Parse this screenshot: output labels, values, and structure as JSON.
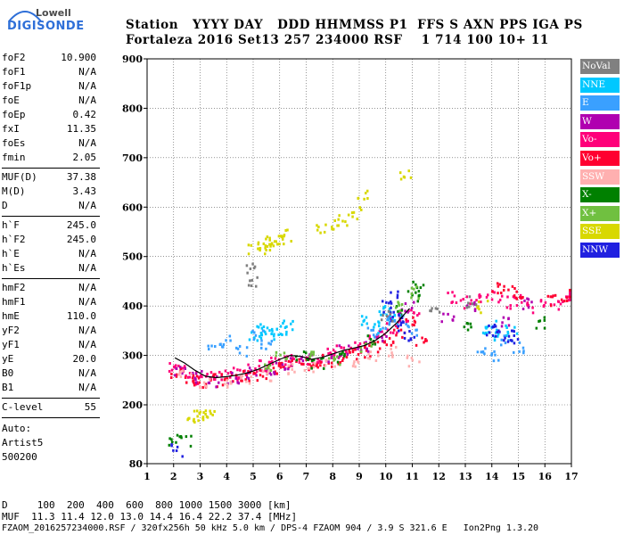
{
  "logo": {
    "line1": "Lowell",
    "line2": "DIGISONDE"
  },
  "header": {
    "labels": "Station   YYYY DAY   DDD HHMMSS P1  FFS S AXN PPS IGA PS",
    "values": "Fortaleza 2016 Set13 257 234000 RSF    1 714 100 10+ 11"
  },
  "params": {
    "group1": [
      {
        "name": "foF2",
        "value": "10.900"
      },
      {
        "name": "foF1",
        "value": "N/A"
      },
      {
        "name": "foF1p",
        "value": "N/A"
      },
      {
        "name": "foE",
        "value": "N/A"
      },
      {
        "name": "foEp",
        "value": "0.42"
      },
      {
        "name": "fxI",
        "value": "11.35"
      },
      {
        "name": "foEs",
        "value": "N/A"
      },
      {
        "name": "fmin",
        "value": "2.05"
      }
    ],
    "group2": [
      {
        "name": "MUF(D)",
        "value": "37.38"
      },
      {
        "name": "M(D)",
        "value": "3.43"
      },
      {
        "name": "D",
        "value": "N/A"
      }
    ],
    "group3": [
      {
        "name": "h`F",
        "value": "245.0"
      },
      {
        "name": "h`F2",
        "value": "245.0"
      },
      {
        "name": "h`E",
        "value": "N/A"
      },
      {
        "name": "h`Es",
        "value": "N/A"
      }
    ],
    "group4": [
      {
        "name": "hmF2",
        "value": "N/A"
      },
      {
        "name": "hmF1",
        "value": "N/A"
      },
      {
        "name": "hmE",
        "value": "110.0"
      },
      {
        "name": "yF2",
        "value": "N/A"
      },
      {
        "name": "yF1",
        "value": "N/A"
      },
      {
        "name": "yE",
        "value": "20.0"
      },
      {
        "name": "B0",
        "value": "N/A"
      },
      {
        "name": "B1",
        "value": "N/A"
      }
    ],
    "clevel": {
      "name": "C-level",
      "value": "55"
    },
    "auto": [
      "Auto:",
      "Artist5",
      "500200"
    ]
  },
  "legend": [
    {
      "label": "NoVal",
      "color": "#808080"
    },
    {
      "label": "NNE",
      "color": "#00c8ff"
    },
    {
      "label": "E",
      "color": "#3aa0ff"
    },
    {
      "label": "W",
      "color": "#b000b0"
    },
    {
      "label": "Vo-",
      "color": "#ff007a"
    },
    {
      "label": "Vo+",
      "color": "#ff0030"
    },
    {
      "label": "SSW",
      "color": "#ffb0b0"
    },
    {
      "label": "X-",
      "color": "#008000"
    },
    {
      "label": "X+",
      "color": "#70c040"
    },
    {
      "label": "SSE",
      "color": "#d8d800"
    },
    {
      "label": "NNW",
      "color": "#2020e0"
    }
  ],
  "footer": {
    "distance": "D     100  200  400  600  800 1000 1500 3000 [km]",
    "muf": "MUF  11.3 11.4 12.0 13.0 14.4 16.4 22.2 37.4 [MHz]",
    "info": "FZAOM_2016257234000.RSF / 320fx256h 50 kHz 5.0 km / DPS-4 FZAOM 904 / 3.9 S 321.6 E   Ion2Png 1.3.20"
  },
  "chart_data": {
    "type": "scatter",
    "title": "",
    "xlabel": "",
    "ylabel": "",
    "xlim": [
      1,
      17
    ],
    "ylim": [
      80,
      900
    ],
    "xticks": [
      1,
      2,
      3,
      4,
      5,
      6,
      7,
      8,
      9,
      10,
      11,
      12,
      13,
      14,
      15,
      16,
      17
    ],
    "yticks": [
      80,
      200,
      300,
      400,
      500,
      600,
      700,
      800,
      900
    ],
    "grid": true,
    "legend_position": "right",
    "series": [
      {
        "name": "Vo-",
        "color": "#ff007a",
        "x": [
          2.0,
          2.3,
          2.6,
          3.0,
          3.4,
          3.8,
          4.2,
          4.6,
          5.0,
          5.4,
          5.8,
          6.2,
          6.6,
          7.0,
          7.4,
          7.8,
          8.2,
          8.6,
          9.0,
          9.4,
          9.8,
          10.2,
          10.6,
          11.0,
          12.5,
          13.0,
          13.5,
          14.0,
          14.5,
          15.0,
          15.5,
          16.0,
          16.5,
          17.0
        ],
        "y": [
          280,
          270,
          260,
          255,
          258,
          262,
          265,
          270,
          275,
          280,
          285,
          290,
          292,
          295,
          300,
          305,
          310,
          315,
          320,
          330,
          345,
          360,
          375,
          390,
          420,
          410,
          415,
          420,
          410,
          415,
          400,
          410,
          405,
          420
        ]
      },
      {
        "name": "Vo+",
        "color": "#ff0030",
        "x": [
          2.1,
          2.5,
          2.9,
          3.3,
          3.7,
          4.1,
          4.5,
          4.9,
          5.3,
          5.7,
          6.1,
          6.5,
          6.9,
          7.3,
          7.7,
          8.1,
          8.5,
          8.9,
          9.3,
          9.7,
          10.1,
          10.5,
          10.9,
          11.3,
          14.2,
          14.6,
          15.0,
          16.3,
          16.8
        ],
        "y": [
          265,
          255,
          250,
          250,
          252,
          255,
          258,
          262,
          268,
          272,
          278,
          282,
          285,
          288,
          292,
          296,
          300,
          305,
          310,
          320,
          335,
          350,
          370,
          330,
          440,
          430,
          420,
          415,
          425
        ]
      },
      {
        "name": "W",
        "color": "#b000b0",
        "x": [
          2.2,
          2.8,
          3.5,
          4.2,
          4.9,
          5.6,
          6.3,
          7.0,
          7.7,
          8.4,
          9.1,
          9.8,
          10.3,
          10.8,
          12.3,
          13.2,
          14.4,
          15.3
        ],
        "y": [
          272,
          258,
          250,
          256,
          265,
          275,
          286,
          292,
          300,
          310,
          322,
          340,
          380,
          400,
          380,
          400,
          370,
          405
        ]
      },
      {
        "name": "SSW",
        "color": "#ffb0b0",
        "x": [
          2.4,
          3.1,
          3.9,
          4.7,
          5.5,
          6.3,
          7.1,
          7.9,
          8.7,
          9.5,
          10.3,
          11.0
        ],
        "y": [
          260,
          248,
          245,
          250,
          262,
          272,
          280,
          286,
          292,
          300,
          310,
          290
        ]
      },
      {
        "name": "X-",
        "color": "#008000",
        "x": [
          2.0,
          2.4,
          6.8,
          7.4,
          8.3,
          9.4,
          10.6,
          11.0,
          11.2,
          13.1,
          15.8
        ],
        "y": [
          130,
          130,
          300,
          285,
          300,
          330,
          390,
          420,
          440,
          360,
          370
        ]
      },
      {
        "name": "X+",
        "color": "#70c040",
        "x": [
          5.6,
          6.0,
          7.2,
          8.0,
          9.2,
          10.4,
          11.1
        ],
        "y": [
          280,
          300,
          300,
          295,
          320,
          400,
          430
        ]
      },
      {
        "name": "SSE",
        "color": "#d8d800",
        "x": [
          2.7,
          2.9,
          3.1,
          3.3,
          5.0,
          5.2,
          5.4,
          5.6,
          5.8,
          6.0,
          6.2,
          7.5,
          8.0,
          8.4,
          8.8,
          9.1,
          10.7,
          13.6
        ],
        "y": [
          178,
          178,
          178,
          178,
          515,
          520,
          525,
          530,
          535,
          540,
          545,
          555,
          565,
          575,
          590,
          630,
          670,
          400
        ]
      },
      {
        "name": "NNE",
        "color": "#00c8ff",
        "x": [
          5.0,
          5.2,
          5.4,
          5.6,
          5.8,
          6.0,
          6.3,
          9.2,
          9.6,
          9.9,
          10.1,
          10.3,
          13.6,
          14.0,
          14.3,
          14.7
        ],
        "y": [
          345,
          350,
          355,
          345,
          350,
          355,
          360,
          370,
          360,
          380,
          390,
          385,
          355,
          360,
          340,
          350
        ]
      },
      {
        "name": "E",
        "color": "#3aa0ff",
        "x": [
          3.5,
          4.0,
          4.5,
          5.1,
          5.5,
          9.4,
          10.0,
          10.5,
          11.0,
          13.5,
          14.0,
          14.5,
          15.0
        ],
        "y": [
          320,
          330,
          310,
          340,
          320,
          350,
          365,
          375,
          355,
          310,
          300,
          330,
          320
        ]
      },
      {
        "name": "NNW",
        "color": "#2020e0",
        "x": [
          2.1,
          10.0,
          10.2,
          10.4,
          10.6,
          10.8,
          14.0,
          14.2,
          14.6,
          14.8
        ],
        "y": [
          110,
          400,
          420,
          380,
          360,
          340,
          350,
          360,
          345,
          340
        ]
      },
      {
        "name": "NoVal",
        "color": "#808080",
        "x": [
          4.8,
          5.0,
          10.0,
          11.8,
          13.2
        ],
        "y": [
          480,
          455,
          380,
          395,
          410
        ]
      }
    ],
    "trace": {
      "x": [
        2.05,
        2.4,
        2.8,
        3.2,
        3.6,
        4.0,
        4.4,
        4.8,
        5.2,
        5.6,
        6.0,
        6.4,
        6.8,
        7.2,
        7.6,
        8.0,
        8.4,
        8.8,
        9.2,
        9.6,
        10.0,
        10.4,
        10.9
      ],
      "y": [
        295,
        285,
        270,
        258,
        255,
        257,
        260,
        265,
        272,
        282,
        292,
        300,
        298,
        292,
        296,
        303,
        310,
        315,
        320,
        330,
        345,
        365,
        395
      ]
    }
  }
}
